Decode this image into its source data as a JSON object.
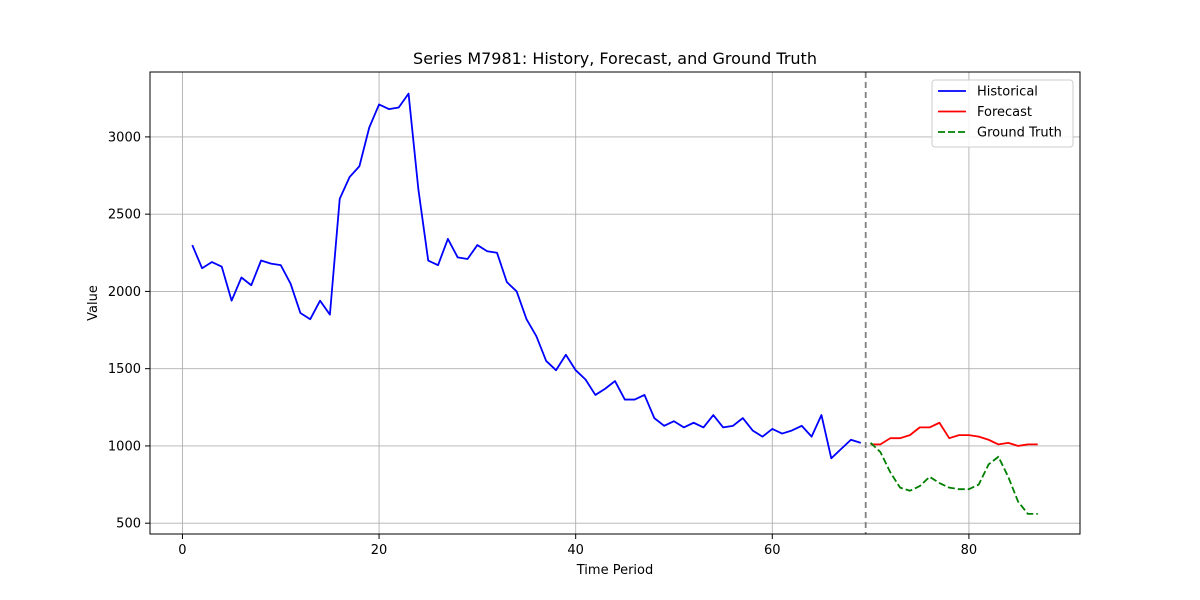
{
  "chart_data": {
    "type": "line",
    "title": "Series M7981: History, Forecast, and Ground Truth",
    "xlabel": "Time Period",
    "ylabel": "Value",
    "xlim": [
      -3.3,
      91.3
    ],
    "ylim": [
      430,
      3420
    ],
    "xticks": [
      0,
      20,
      40,
      60,
      80
    ],
    "yticks": [
      500,
      1000,
      1500,
      2000,
      2500,
      3000
    ],
    "grid": true,
    "legend_position": "top-right",
    "forecast_start_marker": 69.5,
    "series": [
      {
        "name": "Historical",
        "color": "#0000ff",
        "dash": "solid",
        "x": [
          1,
          2,
          3,
          4,
          5,
          6,
          7,
          8,
          9,
          10,
          11,
          12,
          13,
          14,
          15,
          16,
          17,
          18,
          19,
          20,
          21,
          22,
          23,
          24,
          25,
          26,
          27,
          28,
          29,
          30,
          31,
          32,
          33,
          34,
          35,
          36,
          37,
          38,
          39,
          40,
          41,
          42,
          43,
          44,
          45,
          46,
          47,
          48,
          49,
          50,
          51,
          52,
          53,
          54,
          55,
          56,
          57,
          58,
          59,
          60,
          61,
          62,
          63,
          64,
          65,
          66,
          67,
          68,
          69
        ],
        "y": [
          2300,
          2150,
          2190,
          2160,
          1940,
          2090,
          2040,
          2200,
          2180,
          2170,
          2050,
          1860,
          1820,
          1940,
          1850,
          2600,
          2740,
          2810,
          3060,
          3210,
          3180,
          3190,
          3280,
          2660,
          2200,
          2170,
          2340,
          2220,
          2210,
          2300,
          2260,
          2250,
          2060,
          2000,
          1820,
          1710,
          1550,
          1490,
          1590,
          1490,
          1430,
          1330,
          1370,
          1420,
          1300,
          1300,
          1330,
          1180,
          1130,
          1160,
          1120,
          1150,
          1120,
          1200,
          1120,
          1130,
          1180,
          1100,
          1060,
          1110,
          1080,
          1100,
          1130,
          1060,
          1200,
          920,
          980,
          1040,
          1020
        ]
      },
      {
        "name": "Forecast",
        "color": "#ff0000",
        "dash": "solid",
        "x": [
          70,
          71,
          72,
          73,
          74,
          75,
          76,
          77,
          78,
          79,
          80,
          81,
          82,
          83,
          84,
          85,
          86,
          87
        ],
        "y": [
          1010,
          1010,
          1050,
          1050,
          1070,
          1120,
          1120,
          1150,
          1050,
          1070,
          1070,
          1060,
          1040,
          1010,
          1020,
          1000,
          1010,
          1010
        ]
      },
      {
        "name": "Ground Truth",
        "color": "#008000",
        "dash": "dashed",
        "x": [
          70,
          71,
          72,
          73,
          74,
          75,
          76,
          77,
          78,
          79,
          80,
          81,
          82,
          83,
          84,
          85,
          86,
          87
        ],
        "y": [
          1020,
          960,
          830,
          730,
          710,
          740,
          800,
          760,
          730,
          720,
          720,
          750,
          880,
          930,
          800,
          640,
          560,
          560
        ]
      }
    ]
  }
}
